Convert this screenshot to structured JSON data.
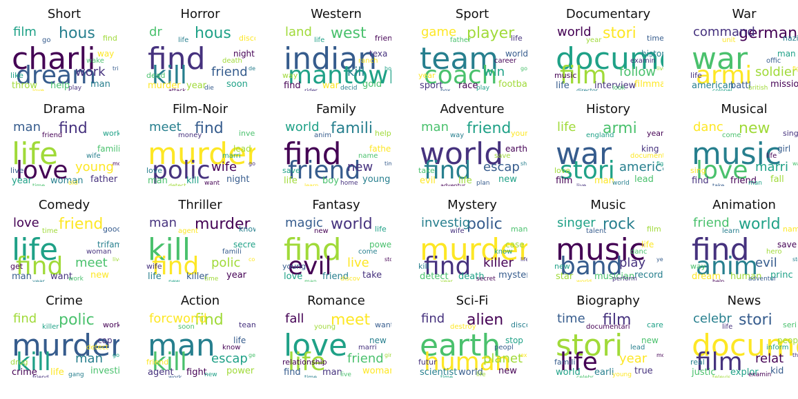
{
  "palette": [
    "#440154",
    "#46327e",
    "#365c8d",
    "#277f8e",
    "#1fa187",
    "#4ac16d",
    "#a0da39",
    "#fde725"
  ],
  "panels": [
    {
      "title": "Short",
      "words": [
        "charli",
        "dream",
        "hous",
        "film",
        "work",
        "throw",
        "help",
        "man",
        "way",
        "like",
        "find",
        "go",
        "wake",
        "play",
        "love",
        "tri"
      ]
    },
    {
      "title": "Horror",
      "words": [
        "find",
        "kill",
        "hous",
        "dr",
        "friend",
        "murder",
        "year",
        "soon",
        "night",
        "dead",
        "discov",
        "life",
        "death",
        "die",
        "attack",
        "decid"
      ]
    },
    {
      "title": "Western",
      "words": [
        "indian",
        "mantown",
        "west",
        "land",
        "kill",
        "find",
        "war",
        "gold",
        "texa",
        "way",
        "friend",
        "life",
        "ranch",
        "decid",
        "rider",
        "home"
      ]
    },
    {
      "title": "Sport",
      "words": [
        "team",
        "coach",
        "player",
        "game",
        "win",
        "sport",
        "race",
        "football",
        "world",
        "year",
        "life",
        "father",
        "career",
        "play",
        "box",
        "good"
      ]
    },
    {
      "title": "Documentary",
      "words": [
        "documentari",
        "film",
        "stori",
        "world",
        "follow",
        "life",
        "interview",
        "filmmak",
        "histori",
        "music",
        "time",
        "year",
        "examin",
        "look",
        "director",
        "live"
      ]
    },
    {
      "title": "War",
      "words": [
        "war",
        "armi",
        "german",
        "command",
        "soldier",
        "american",
        "battl",
        "mission",
        "man",
        "life",
        "nazi",
        "unit",
        "offic",
        "british",
        "colonel",
        "fight"
      ]
    },
    {
      "title": "Drama",
      "words": [
        "life",
        "love",
        "find",
        "man",
        "young",
        "year",
        "woman",
        "father",
        "famili",
        "live",
        "work",
        "friend",
        "wife",
        "old",
        "time",
        "mother"
      ]
    },
    {
      "title": "Film-Noir",
      "words": [
        "murder",
        "polic",
        "find",
        "meet",
        "wife",
        "man",
        "kill",
        "night",
        "lead",
        "love",
        "investig",
        "money",
        "marri",
        "want",
        "detect",
        "go"
      ]
    },
    {
      "title": "Family",
      "words": [
        "find",
        "friend",
        "famili",
        "world",
        "new",
        "life",
        "boy",
        "young",
        "father",
        "save",
        "help",
        "anim",
        "name",
        "home",
        "learn",
        "time"
      ]
    },
    {
      "title": "Adventure",
      "words": [
        "world",
        "find",
        "friend",
        "man",
        "escap",
        "evil",
        "life",
        "new",
        "earth",
        "take",
        "young",
        "way",
        "save",
        "plan",
        "adventur",
        "ship"
      ]
    },
    {
      "title": "History",
      "words": [
        "war",
        "stori",
        "armi",
        "life",
        "american",
        "film",
        "man",
        "lead",
        "king",
        "love",
        "year",
        "england",
        "documentari",
        "world",
        "live",
        "fight"
      ]
    },
    {
      "title": "Musical",
      "words": [
        "music",
        "love",
        "new",
        "danc",
        "marri",
        "find",
        "friend",
        "fall",
        "girl",
        "sing",
        "singer",
        "come",
        "life",
        "man",
        "take",
        "want"
      ]
    },
    {
      "title": "Comedy",
      "words": [
        "life",
        "find",
        "friend",
        "love",
        "meet",
        "man",
        "want",
        "new",
        "trifamili",
        "get",
        "good",
        "time",
        "woman",
        "work",
        "year",
        "live"
      ]
    },
    {
      "title": "Thriller",
      "words": [
        "kill",
        "find",
        "murder",
        "man",
        "polic",
        "life",
        "killer",
        "year",
        "secret",
        "wife",
        "know",
        "agent",
        "famili",
        "time",
        "new",
        "come"
      ]
    },
    {
      "title": "Fantasy",
      "words": [
        "find",
        "evil",
        "world",
        "magic",
        "live",
        "love",
        "friend",
        "take",
        "power",
        "young",
        "life",
        "new",
        "come",
        "discov",
        "man",
        "stori"
      ]
    },
    {
      "title": "Mystery",
      "words": [
        "murder",
        "find",
        "polic",
        "investig",
        "killer",
        "detect",
        "death",
        "mysteri",
        "case",
        "kill",
        "man",
        "wife",
        "know",
        "secret",
        "year",
        "life"
      ]
    },
    {
      "title": "Music",
      "words": [
        "music",
        "band",
        "rock",
        "singer",
        "play",
        "star",
        "musician",
        "record",
        "life",
        "new",
        "film",
        "talent",
        "danc",
        "perform",
        "world",
        "year"
      ]
    },
    {
      "title": "Animation",
      "words": [
        "find",
        "anim",
        "world",
        "friend",
        "evil",
        "dream",
        "human",
        "princ",
        "save",
        "way",
        "name",
        "learn",
        "hero",
        "adventur",
        "help",
        "stori"
      ]
    },
    {
      "title": "Crime",
      "words": [
        "murder",
        "kill",
        "polic",
        "find",
        "man",
        "crime",
        "life",
        "investig",
        "cop",
        "drug",
        "work",
        "killer",
        "detect",
        "gang",
        "friend",
        "go"
      ]
    },
    {
      "title": "Action",
      "words": [
        "man",
        "kill",
        "find",
        "forcworld",
        "escap",
        "agent",
        "fight",
        "power",
        "life",
        "friend",
        "team",
        "soon",
        "know",
        "new",
        "work",
        "get"
      ]
    },
    {
      "title": "Romance",
      "words": [
        "love",
        "life",
        "meet",
        "fall",
        "friend",
        "find",
        "man",
        "woman",
        "new",
        "relationship",
        "want",
        "young",
        "marri",
        "live",
        "time",
        "girl"
      ]
    },
    {
      "title": "Sci-Fi",
      "words": [
        "earth",
        "human",
        "alien",
        "find",
        "planet",
        "scientist",
        "world",
        "new",
        "stop",
        "futur",
        "discov",
        "destroy",
        "peopl",
        "life",
        "time",
        "experi"
      ]
    },
    {
      "title": "Biography",
      "words": [
        "stori",
        "life",
        "film",
        "time",
        "year",
        "world",
        "earli",
        "true",
        "new",
        "famili",
        "career",
        "documentari",
        "lead",
        "young",
        "celebr",
        "movi"
      ]
    },
    {
      "title": "News",
      "words": [
        "documentari",
        "film",
        "stori",
        "celebr",
        "relat",
        "justic",
        "explor",
        "kid",
        "peopl",
        "real",
        "seri",
        "life",
        "inform",
        "examin",
        "televis",
        "threat"
      ]
    }
  ]
}
